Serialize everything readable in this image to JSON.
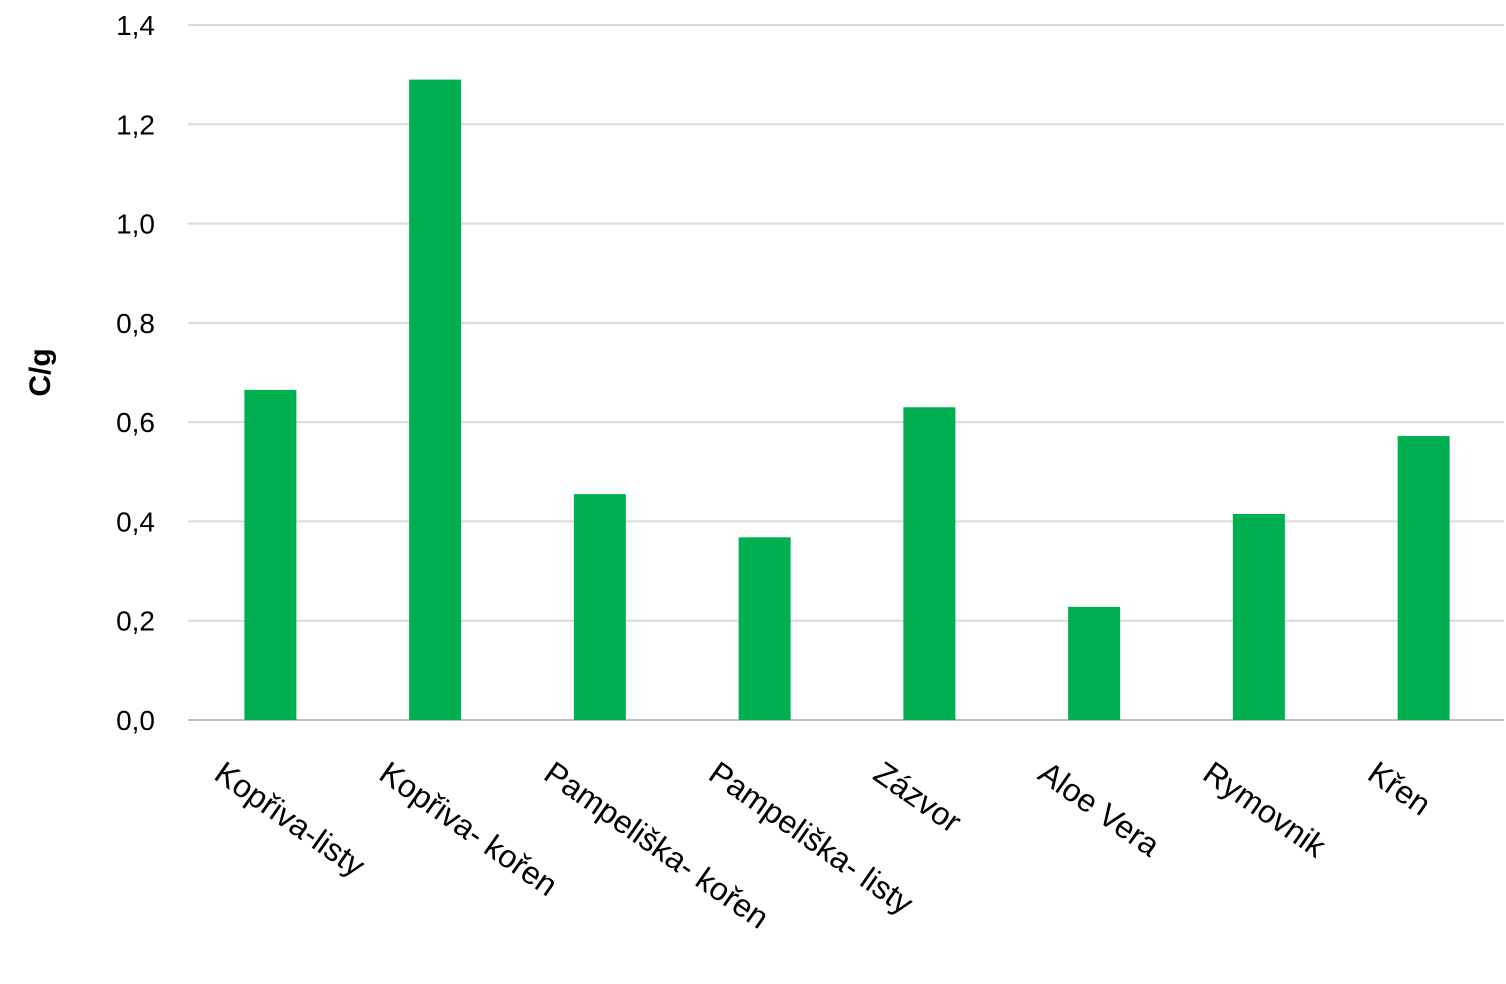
{
  "chart_data": {
    "type": "bar",
    "title": "",
    "xlabel": "",
    "ylabel": "C/g",
    "ylim": [
      0,
      1.4
    ],
    "yticks": [
      "0,0",
      "0,2",
      "0,4",
      "0,6",
      "0,8",
      "1,0",
      "1,2",
      "1,4"
    ],
    "grid": true,
    "legend": "none",
    "categories": [
      "Kopřiva-listy",
      "Kopřiva- kořen",
      "Pampeliška- kořen",
      "Pampeliška- listy",
      "Zázvor",
      "Aloe Vera",
      "Rymovnik",
      "Křen"
    ],
    "values": [
      0.665,
      1.29,
      0.455,
      0.368,
      0.63,
      0.228,
      0.415,
      0.572
    ],
    "colors": {
      "bar": "#00b050",
      "grid": "#d9d9d9",
      "axis": "#bfbfbf"
    }
  }
}
